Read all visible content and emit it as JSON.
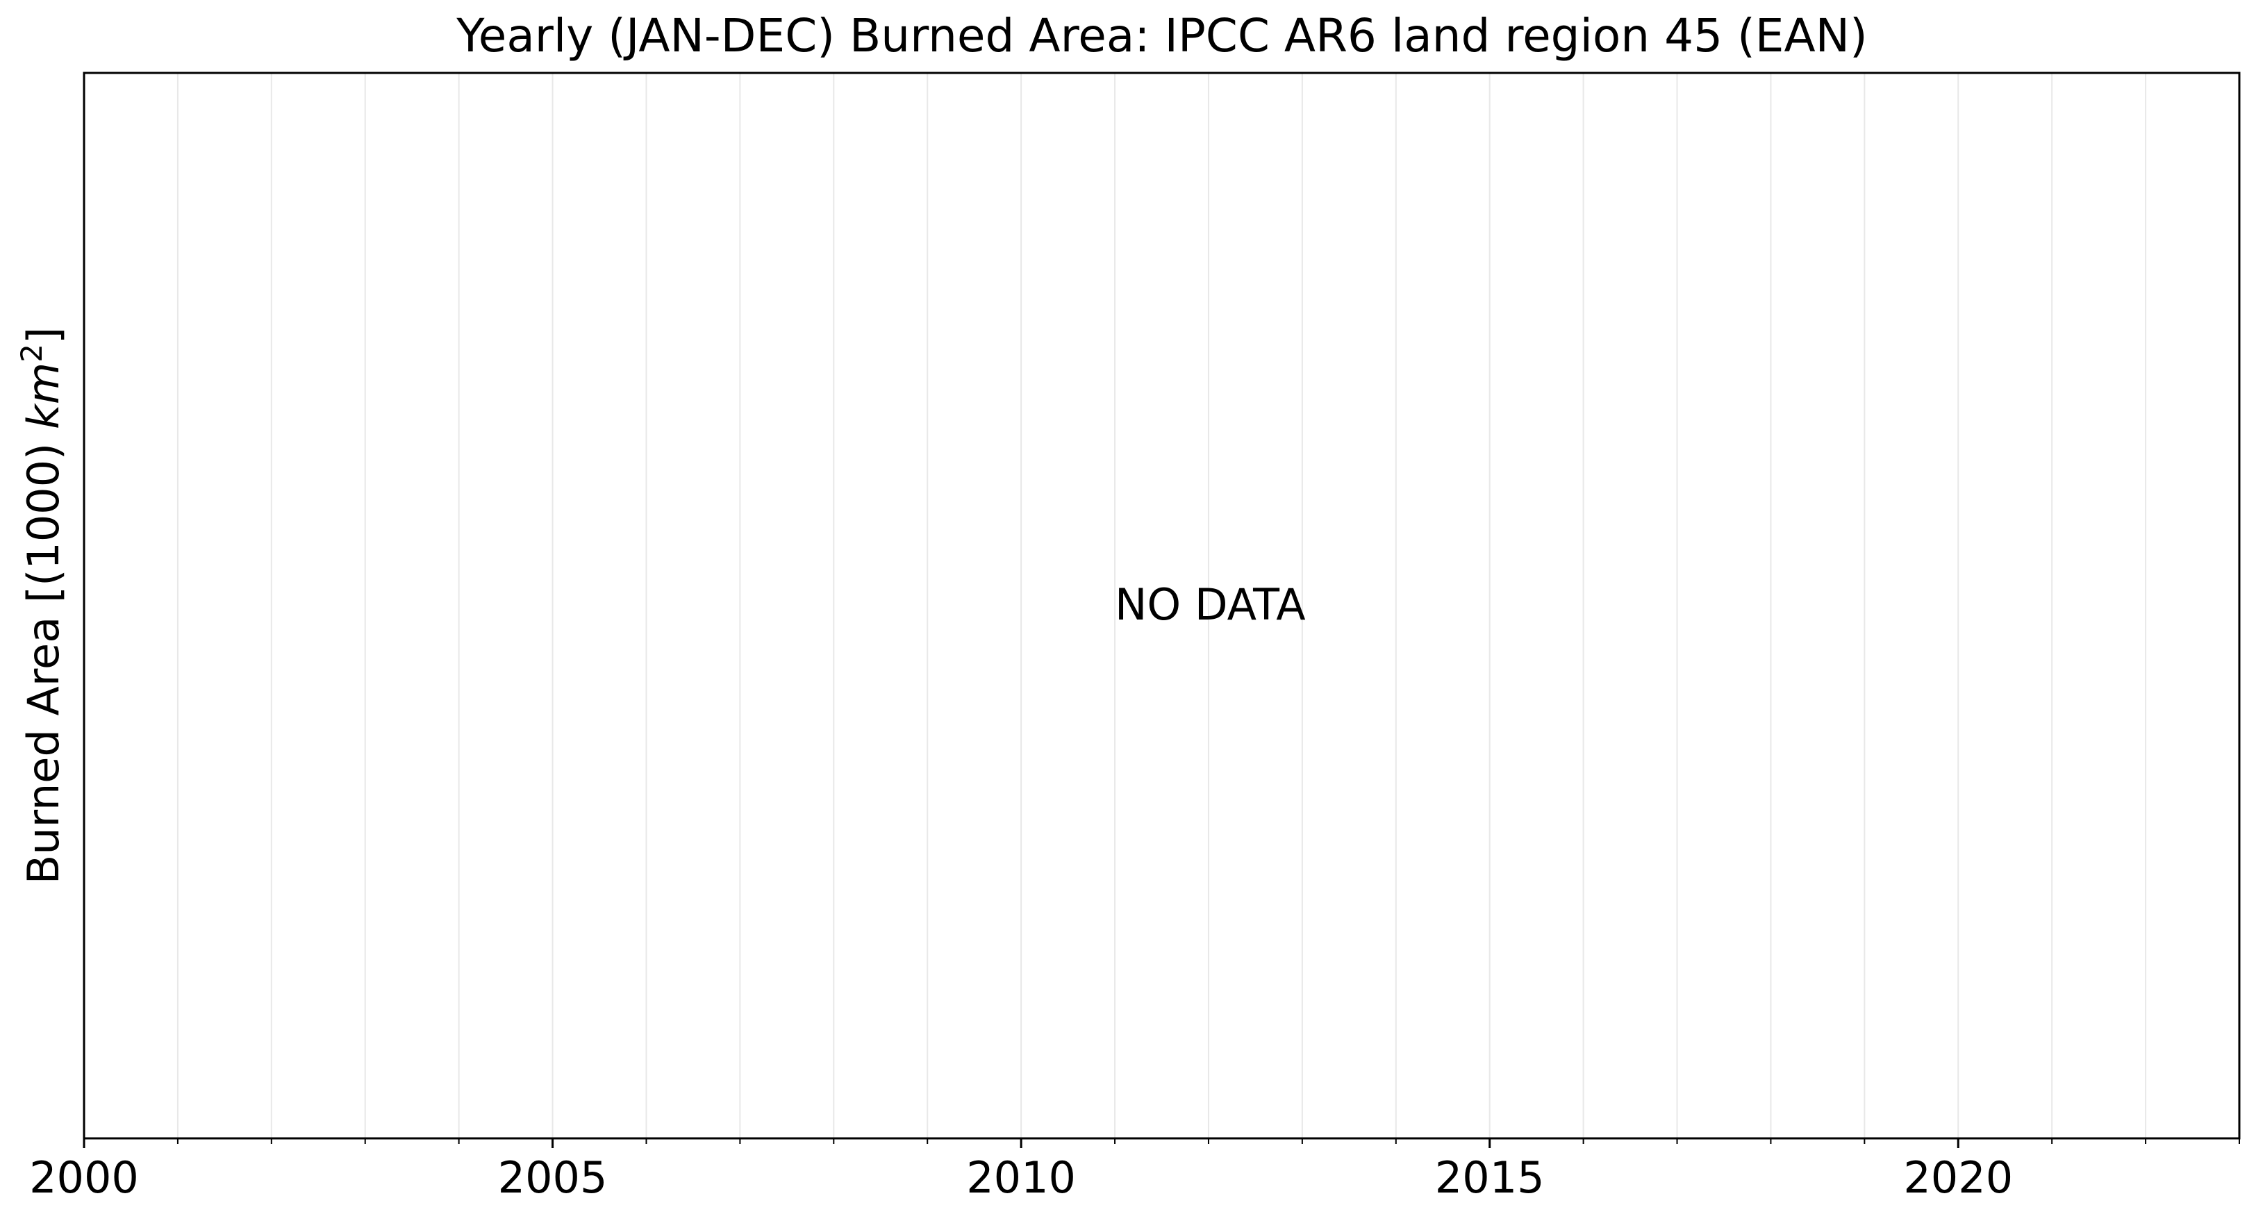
{
  "chart_data": {
    "type": "line",
    "title": "Yearly (JAN-DEC) Burned Area: IPCC AR6 land region 45 (EAN)",
    "xlabel": "",
    "ylabel": "Burned Area [(1000) km²]",
    "ylabel_parts": {
      "prefix": "Burned Area [(1000) ",
      "unit_base": "km",
      "unit_exp": "2",
      "suffix": "]"
    },
    "xlim": [
      2000,
      2023
    ],
    "major_ticks": [
      2000,
      2005,
      2010,
      2015,
      2020
    ],
    "tick_labels": [
      "2000",
      "2005",
      "2010",
      "2015",
      "2020"
    ],
    "minor_tick_step": 1,
    "grid": "vertical-yearly",
    "series": [],
    "annotation": "NO DATA",
    "annotation_position": {
      "x": 2011,
      "y_fraction": 0.5
    }
  },
  "colors": {
    "axis": "#000000",
    "grid": "#e8e8e8",
    "background": "#ffffff",
    "text": "#000000"
  }
}
